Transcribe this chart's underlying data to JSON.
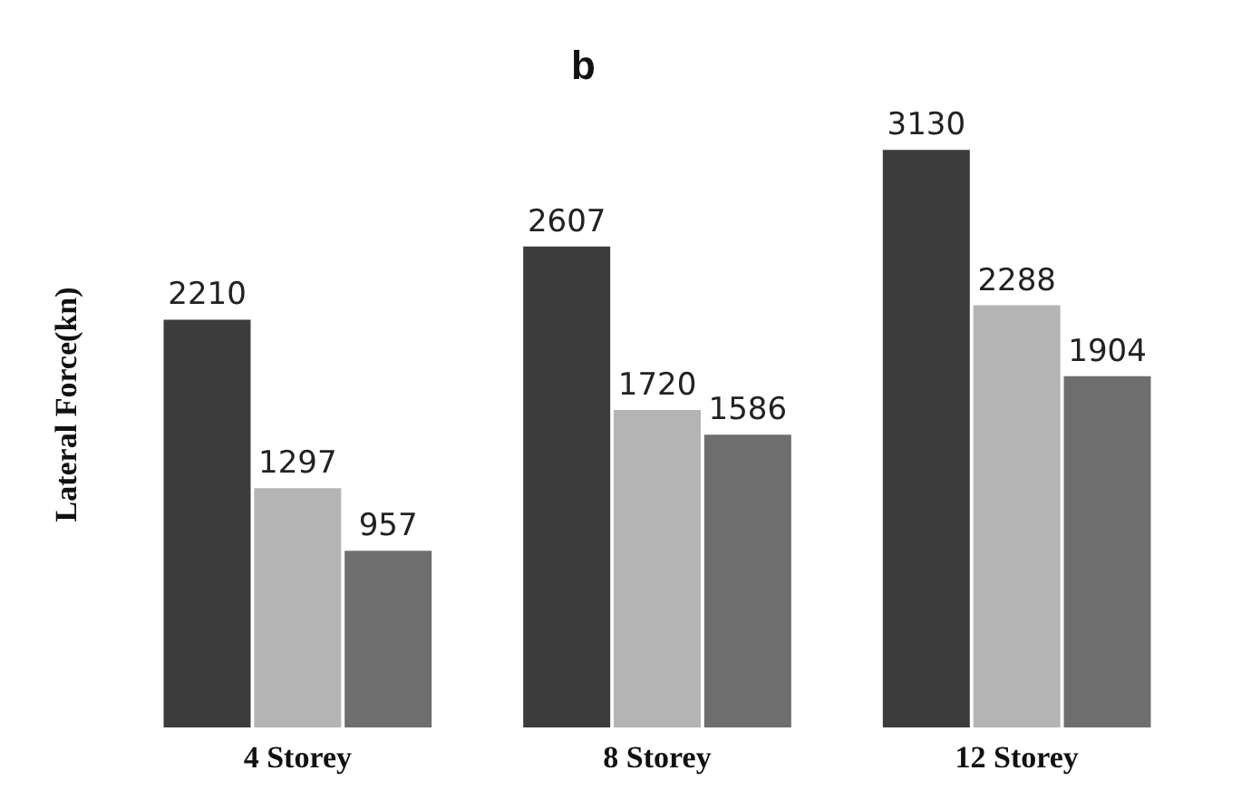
{
  "chart_data": {
    "type": "bar",
    "title": "b",
    "ylabel": "Lateral Force(kn)",
    "categories": [
      "4 Storey",
      "8 Storey",
      "12 Storey"
    ],
    "series": [
      {
        "color": "#3c3c3c",
        "values": [
          2210,
          2607,
          3130
        ]
      },
      {
        "color": "#b4b4b4",
        "values": [
          1297,
          1720,
          2288
        ]
      },
      {
        "color": "#6e6e6e",
        "values": [
          957,
          1586,
          1904
        ]
      }
    ],
    "data_labels": true,
    "tick_labels": "x"
  }
}
